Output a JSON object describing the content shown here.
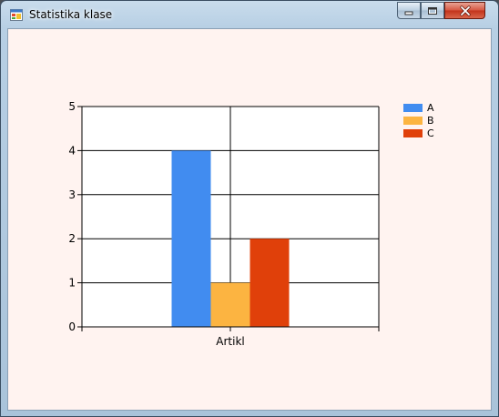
{
  "window": {
    "title": "Statistika klase",
    "icon": "app-window-icon",
    "controls": [
      "minimize-icon",
      "maximize-icon",
      "close-icon"
    ]
  },
  "chart_data": {
    "type": "bar",
    "categories": [
      "Artikl"
    ],
    "series": [
      {
        "name": "A",
        "values": [
          4
        ],
        "color": "#418CF0"
      },
      {
        "name": "B",
        "values": [
          1
        ],
        "color": "#FCB441"
      },
      {
        "name": "C",
        "values": [
          2
        ],
        "color": "#E0400A"
      }
    ],
    "ylim": [
      0,
      5
    ],
    "yticks": [
      0,
      1,
      2,
      3,
      4,
      5
    ],
    "xlabel": "",
    "ylabel": "",
    "grid": true,
    "legend": "top-right"
  }
}
